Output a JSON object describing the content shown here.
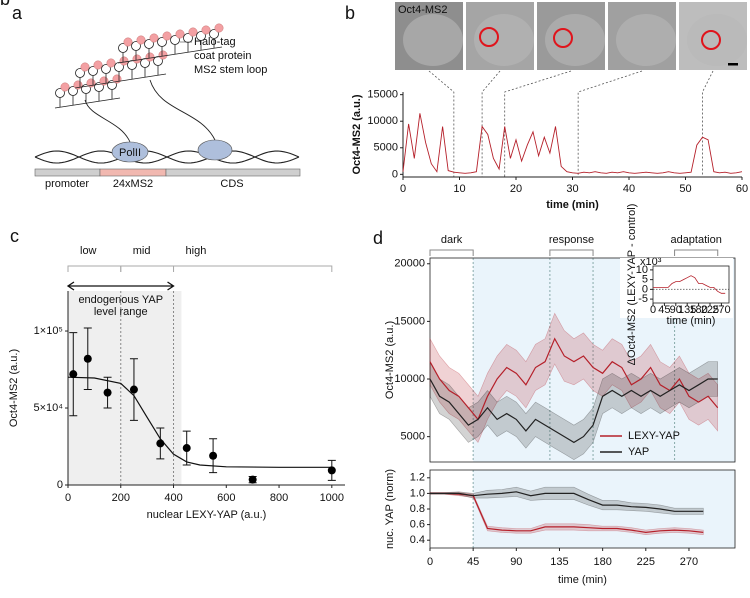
{
  "diagram": {
    "panel": "a",
    "labels": {
      "halo": "Halo-tag",
      "coat": "coat protein",
      "stem": "MS2 stem loop",
      "pol": "PolII",
      "promoter": "promoter",
      "ms2": "24xMS2",
      "cds": "CDS"
    }
  },
  "chart_data": [
    {
      "type": "line",
      "panel": "b",
      "image_label": "Oct4-MS2",
      "xlabel": "time (min)",
      "ylabel": "Oct4-MS2 (a.u.)",
      "color": "#b5202a",
      "x": [
        0,
        1,
        2,
        3,
        4,
        5,
        6,
        7,
        8,
        9,
        10,
        11,
        12,
        13,
        14,
        15,
        16,
        17,
        18,
        19,
        20,
        21,
        22,
        23,
        24,
        25,
        26,
        27,
        28,
        29,
        30,
        31,
        32,
        33,
        34,
        35,
        36,
        37,
        38,
        39,
        40,
        41,
        42,
        43,
        44,
        45,
        46,
        47,
        48,
        49,
        50,
        51,
        52,
        53,
        54,
        55,
        56,
        57,
        58,
        59,
        60
      ],
      "values": [
        500,
        9500,
        3000,
        11500,
        6000,
        2000,
        500,
        9000,
        700,
        400,
        300,
        200,
        300,
        500,
        9000,
        7500,
        3000,
        1000,
        9000,
        3000,
        6500,
        2500,
        5500,
        8000,
        3500,
        7000,
        4000,
        9000,
        1500,
        500,
        300,
        200,
        400,
        300,
        500,
        300,
        200,
        400,
        300,
        500,
        300,
        200,
        300,
        400,
        300,
        200,
        300,
        500,
        300,
        200,
        300,
        400,
        5500,
        7000,
        6500,
        500,
        300,
        400,
        200,
        300,
        500
      ],
      "frame_times": [
        9,
        14,
        18,
        31,
        53
      ],
      "xlim": [
        0,
        60
      ],
      "xticks": [
        0,
        10,
        20,
        30,
        40,
        50,
        60
      ],
      "ylim": [
        -500,
        15500
      ],
      "yticks": [
        0,
        5000,
        10000,
        15000
      ]
    },
    {
      "type": "scatter",
      "panel": "c",
      "xlabel": "nuclear LEXY-YAP (a.u.)",
      "ylabel": "Oct4-MS2 (a.u.)",
      "color": "#000000",
      "x": [
        20,
        75,
        150,
        250,
        350,
        450,
        550,
        700,
        1000
      ],
      "values": [
        72000,
        82000,
        60000,
        62000,
        27000,
        24000,
        19000,
        3500,
        9500
      ],
      "errors": [
        27000,
        20000,
        10000,
        20000,
        10000,
        11000,
        11000,
        2000,
        6500
      ],
      "fit": {
        "x": [
          0,
          100,
          200,
          250,
          300,
          350,
          400,
          450,
          500,
          600,
          800,
          1000
        ],
        "values": [
          70000,
          69500,
          66000,
          58000,
          44000,
          30000,
          20000,
          15000,
          13000,
          11800,
          11500,
          11500
        ]
      },
      "regions": [
        {
          "label": "low",
          "range": [
            0,
            200
          ]
        },
        {
          "label": "mid",
          "range": [
            200,
            400
          ]
        },
        {
          "label": "high",
          "range": [
            400,
            1000
          ]
        }
      ],
      "level_range": {
        "label_lines": [
          "endogenous YAP",
          "level range"
        ],
        "range": [
          0,
          400
        ]
      },
      "shade": [
        0,
        430
      ],
      "xlim": [
        0,
        1050
      ],
      "xticks": [
        0,
        200,
        400,
        600,
        800,
        1000
      ],
      "ylim": [
        0,
        126000
      ],
      "yticks": [
        0,
        {
          "value": 50000,
          "label": "5×10⁴"
        },
        {
          "value": 100000,
          "label": "1×10⁵"
        }
      ]
    },
    {
      "type": "band",
      "panel": "d",
      "ylabel": "Oct4-MS2 (a.u.)",
      "x": [
        0,
        10,
        20,
        30,
        40,
        50,
        60,
        70,
        80,
        90,
        100,
        110,
        120,
        130,
        140,
        150,
        160,
        170,
        180,
        190,
        200,
        210,
        220,
        230,
        240,
        250,
        260,
        270,
        280,
        290,
        300
      ],
      "series": [
        {
          "name": "LEXY-YAP",
          "color": "#b5202a",
          "values": [
            11500,
            10000,
            9000,
            8500,
            7500,
            6500,
            8500,
            10000,
            11000,
            10500,
            9500,
            11000,
            11500,
            13500,
            12000,
            11500,
            12000,
            11000,
            10500,
            11500,
            11000,
            9500,
            10000,
            11000,
            9500,
            9000,
            10000,
            8500,
            8000,
            8500,
            7500
          ],
          "errors": [
            2000,
            2000,
            2000,
            2000,
            2000,
            2000,
            2000,
            2000,
            2000,
            2000,
            2000,
            2000,
            2000,
            2200,
            2200,
            2000,
            2000,
            2000,
            2000,
            2000,
            2000,
            2000,
            2000,
            2000,
            2000,
            2000,
            2000,
            2000,
            2000,
            2000,
            2000
          ]
        },
        {
          "name": "YAP",
          "color": "#222222",
          "values": [
            10000,
            8500,
            8000,
            7000,
            6000,
            6500,
            7500,
            6500,
            7000,
            6500,
            5500,
            6500,
            6000,
            5500,
            5000,
            4500,
            5000,
            6000,
            8500,
            9000,
            8500,
            9000,
            8500,
            9000,
            8500,
            9000,
            9500,
            9000,
            9500,
            10000,
            10000
          ],
          "errors": [
            1500,
            1500,
            1500,
            1500,
            1500,
            1500,
            1500,
            1500,
            1500,
            1500,
            1500,
            1500,
            1500,
            1500,
            1500,
            1500,
            1500,
            1500,
            1500,
            1500,
            1500,
            1500,
            1500,
            1500,
            1500,
            1500,
            1500,
            1500,
            1500,
            1500,
            1500
          ]
        }
      ],
      "periods": [
        {
          "label": "dark",
          "range": [
            0,
            45
          ]
        },
        {
          "label": "response",
          "range": [
            125,
            170
          ]
        },
        {
          "label": "adaptation",
          "range": [
            255,
            300
          ]
        }
      ],
      "light_start": 45,
      "xlim": [
        0,
        318
      ],
      "ylim": [
        2800,
        20500
      ],
      "yticks": [
        5000,
        10000,
        15000,
        20000
      ]
    },
    {
      "type": "line",
      "ylabel": "ΔOct4-MS2 (LEXY-YAP - control)",
      "xlabel": "time (min)",
      "ymult": "x10³",
      "color": "#b5202a",
      "x": [
        0,
        15,
        30,
        45,
        60,
        75,
        90,
        105,
        120,
        135,
        150,
        165,
        180,
        195,
        210,
        225,
        240,
        255,
        270,
        285
      ],
      "values": [
        1,
        1,
        1,
        1,
        1,
        3,
        4,
        4,
        5,
        6,
        7,
        6,
        3,
        3,
        2,
        1,
        1,
        -1,
        -2,
        -2
      ],
      "xlim": [
        0,
        300
      ],
      "xticks": [
        0,
        45,
        90,
        135,
        180,
        225,
        270
      ],
      "ylim": [
        -7,
        12
      ],
      "yticks": [
        -5,
        0,
        5,
        10
      ]
    },
    {
      "type": "band",
      "xlabel": "time (min)",
      "ylabel": "nuc. YAP (norm)",
      "x": [
        0,
        15,
        30,
        45,
        60,
        75,
        90,
        105,
        120,
        135,
        150,
        165,
        180,
        195,
        210,
        225,
        240,
        255,
        270,
        285
      ],
      "series": [
        {
          "color": "#b5202a",
          "values": [
            1.0,
            1.0,
            0.99,
            0.97,
            0.55,
            0.53,
            0.52,
            0.52,
            0.57,
            0.57,
            0.57,
            0.56,
            0.55,
            0.55,
            0.53,
            0.5,
            0.52,
            0.53,
            0.52,
            0.5
          ],
          "errors": [
            0.01,
            0.01,
            0.02,
            0.02,
            0.03,
            0.03,
            0.03,
            0.03,
            0.04,
            0.04,
            0.04,
            0.04,
            0.03,
            0.03,
            0.03,
            0.03,
            0.03,
            0.03,
            0.03,
            0.03
          ]
        },
        {
          "color": "#222222",
          "values": [
            1.0,
            1.0,
            1.0,
            0.97,
            0.99,
            1.0,
            1.02,
            0.97,
            1.0,
            1.0,
            1.0,
            0.92,
            0.85,
            0.85,
            0.83,
            0.82,
            0.8,
            0.77,
            0.77,
            0.77
          ],
          "errors": [
            0.01,
            0.01,
            0.02,
            0.03,
            0.05,
            0.05,
            0.06,
            0.06,
            0.08,
            0.08,
            0.08,
            0.07,
            0.06,
            0.06,
            0.05,
            0.05,
            0.05,
            0.04,
            0.04,
            0.04
          ]
        }
      ],
      "light_start": 45,
      "xlim": [
        0,
        318
      ],
      "xticks": [
        0,
        45,
        90,
        135,
        180,
        225,
        270
      ],
      "ylim": [
        0.3,
        1.3
      ],
      "yticks": [
        0.4,
        0.6,
        0.8,
        {
          "value": 1,
          "label": "1.0"
        },
        1.2
      ]
    }
  ]
}
